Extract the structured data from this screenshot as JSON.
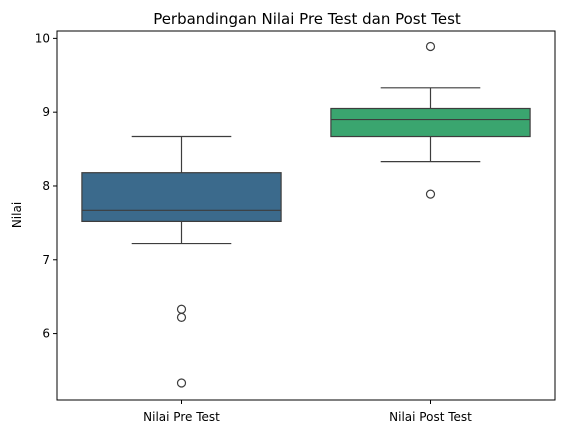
{
  "chart_data": {
    "type": "boxplot",
    "title": "Perbandingan Nilai Pre Test dan Post Test",
    "xlabel": "",
    "ylabel": "Nilai",
    "ylim": [
      5.1,
      10.1
    ],
    "yticks": [
      6,
      7,
      8,
      9,
      10
    ],
    "ytick_labels": [
      "6",
      "7",
      "8",
      "9",
      "10"
    ],
    "grid": false,
    "categories": [
      "Nilai Pre Test",
      "Nilai Post Test"
    ],
    "boxes": [
      {
        "category": "Nilai Pre Test",
        "color": "#3b6a8c",
        "whisker_low": 7.22,
        "q1": 7.52,
        "median": 7.67,
        "q3": 8.18,
        "whisker_high": 8.67,
        "outliers": [
          6.33,
          6.22,
          5.33
        ]
      },
      {
        "category": "Nilai Post Test",
        "color": "#3aa56f",
        "whisker_low": 8.33,
        "q1": 8.67,
        "median": 8.9,
        "q3": 9.05,
        "whisker_high": 9.33,
        "outliers": [
          7.89,
          9.89
        ]
      }
    ]
  }
}
